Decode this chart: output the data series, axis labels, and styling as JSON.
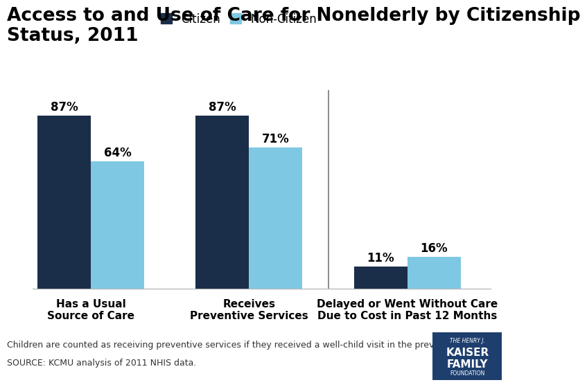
{
  "title": "Access to and Use of Care for Nonelderly by Citizenship\nStatus, 2011",
  "categories": [
    "Has a Usual\nSource of Care",
    "Receives\nPreventive Services",
    "Delayed or Went Without Care\nDue to Cost in Past 12 Months"
  ],
  "citizen_values": [
    87,
    87,
    11
  ],
  "noncitizen_values": [
    64,
    71,
    16
  ],
  "citizen_color": "#1a2e4a",
  "noncitizen_color": "#7ec8e3",
  "bar_width": 0.32,
  "ylim": [
    0,
    100
  ],
  "legend_labels": [
    "Citizen",
    "Non-Citizen"
  ],
  "footnote_line1": "Children are counted as receiving preventive services if they received a well-child visit in the previous year.",
  "footnote_line2": "SOURCE: KCMU analysis of 2011 NHIS data.",
  "title_fontsize": 19,
  "axis_label_fontsize": 11,
  "bar_label_fontsize": 12,
  "legend_fontsize": 12,
  "footnote_fontsize": 9,
  "kaiser_box_color": "#1e3f6e",
  "kaiser_text_line1": "THE HENRY J.",
  "kaiser_text_line2": "KAISER",
  "kaiser_text_line3": "FAMILY",
  "kaiser_text_line4": "FOUNDATION"
}
